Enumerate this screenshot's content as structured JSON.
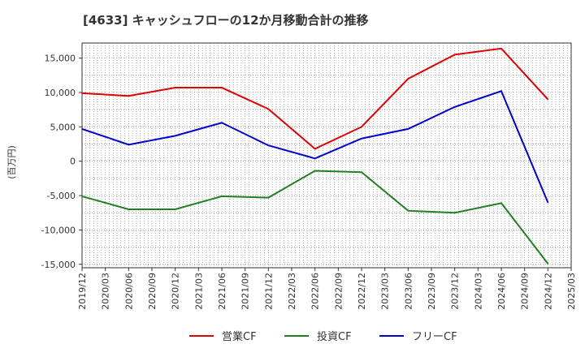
{
  "chart_data": {
    "type": "line",
    "title": "[4633]  キャッシュフローの12か月移動合計の推移",
    "ylabel": "(百万円)",
    "xlabel": "",
    "ylim": [
      -15500,
      17200
    ],
    "yticks": [
      15000,
      10000,
      5000,
      0,
      -5000,
      -10000,
      -15000
    ],
    "ytick_labels": [
      "15,000",
      "10,000",
      "5,000",
      "0",
      "-5,000",
      "-10,000",
      "-15,000"
    ],
    "x_ticks": [
      "2019/12",
      "2020/03",
      "2020/06",
      "2020/09",
      "2020/12",
      "2021/03",
      "2021/06",
      "2021/09",
      "2021/12",
      "2022/03",
      "2022/06",
      "2022/09",
      "2022/12",
      "2023/03",
      "2023/06",
      "2023/09",
      "2023/12",
      "2024/03",
      "2024/06",
      "2024/09",
      "2024/12",
      "2025/03"
    ],
    "grid": true,
    "legend_position": "bottom",
    "series": [
      {
        "name": "営業CF",
        "color": "#e00000",
        "x": [
          "2019/12",
          "2020/06",
          "2020/12",
          "2021/06",
          "2021/12",
          "2022/06",
          "2022/12",
          "2023/06",
          "2023/12",
          "2024/06",
          "2024/12"
        ],
        "values": [
          9900,
          9500,
          10700,
          10700,
          7600,
          1800,
          5000,
          12000,
          15500,
          16400,
          9000
        ]
      },
      {
        "name": "投資CF",
        "color": "#208020",
        "x": [
          "2019/12",
          "2020/06",
          "2020/12",
          "2021/06",
          "2021/12",
          "2022/06",
          "2022/12",
          "2023/06",
          "2023/12",
          "2024/06",
          "2024/12"
        ],
        "values": [
          -5100,
          -7000,
          -7000,
          -5100,
          -5300,
          -1400,
          -1600,
          -7200,
          -7500,
          -6100,
          -14900
        ]
      },
      {
        "name": "フリーCF",
        "color": "#0000cc",
        "x": [
          "2019/12",
          "2020/06",
          "2020/12",
          "2021/06",
          "2021/12",
          "2022/06",
          "2022/12",
          "2023/06",
          "2023/12",
          "2024/06",
          "2024/12"
        ],
        "values": [
          4700,
          2400,
          3700,
          5600,
          2300,
          400,
          3300,
          4700,
          7900,
          10200,
          -6000
        ]
      }
    ]
  }
}
